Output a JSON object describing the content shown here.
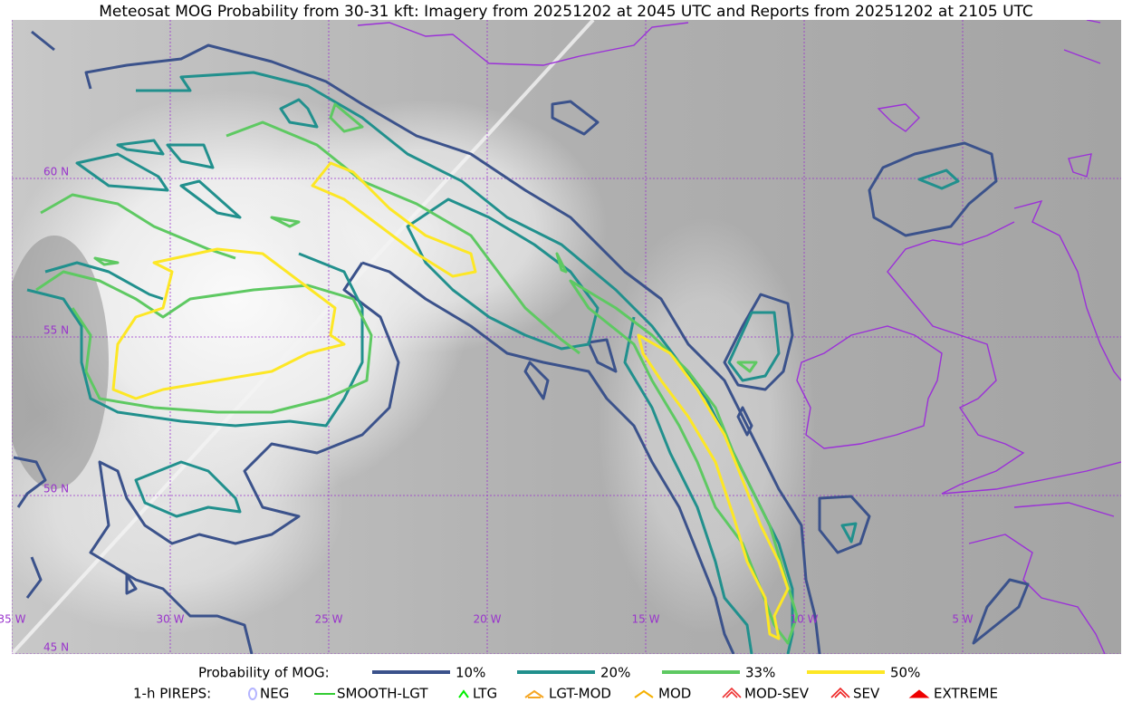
{
  "title": "Meteosat MOG Probability from 30-31 kft: Imagery from 20251202 at 2045 UTC and Reports from 20251202 at 2105 UTC",
  "latitude_labels": [
    "60 N",
    "55 N",
    "50 N",
    "45 N"
  ],
  "longitude_labels": [
    "35 W",
    "30 W",
    "25 W",
    "20 W",
    "15 W",
    "10 W",
    "5 W"
  ],
  "legend": {
    "probability": {
      "label": "Probability of MOG:",
      "levels": [
        {
          "label": "10%",
          "color": "#3b528b"
        },
        {
          "label": "20%",
          "color": "#21908d"
        },
        {
          "label": "33%",
          "color": "#5ec962"
        },
        {
          "label": "50%",
          "color": "#fde725"
        }
      ]
    },
    "pireps": {
      "label": "1-h PIREPS:",
      "items": [
        {
          "label": "NEG",
          "color": "#b4b4ff"
        },
        {
          "label": "SMOOTH-LGT",
          "color": "#33cc33"
        },
        {
          "label": "LTG",
          "color": "#00ee00"
        },
        {
          "label": "LGT-MOD",
          "color": "#f5a623"
        },
        {
          "label": "MOD",
          "color": "#f5b000"
        },
        {
          "label": "MOD-SEV",
          "color": "#ee3333"
        },
        {
          "label": "SEV",
          "color": "#ee2222"
        },
        {
          "label": "EXTREME",
          "color": "#ee0000"
        }
      ]
    }
  }
}
